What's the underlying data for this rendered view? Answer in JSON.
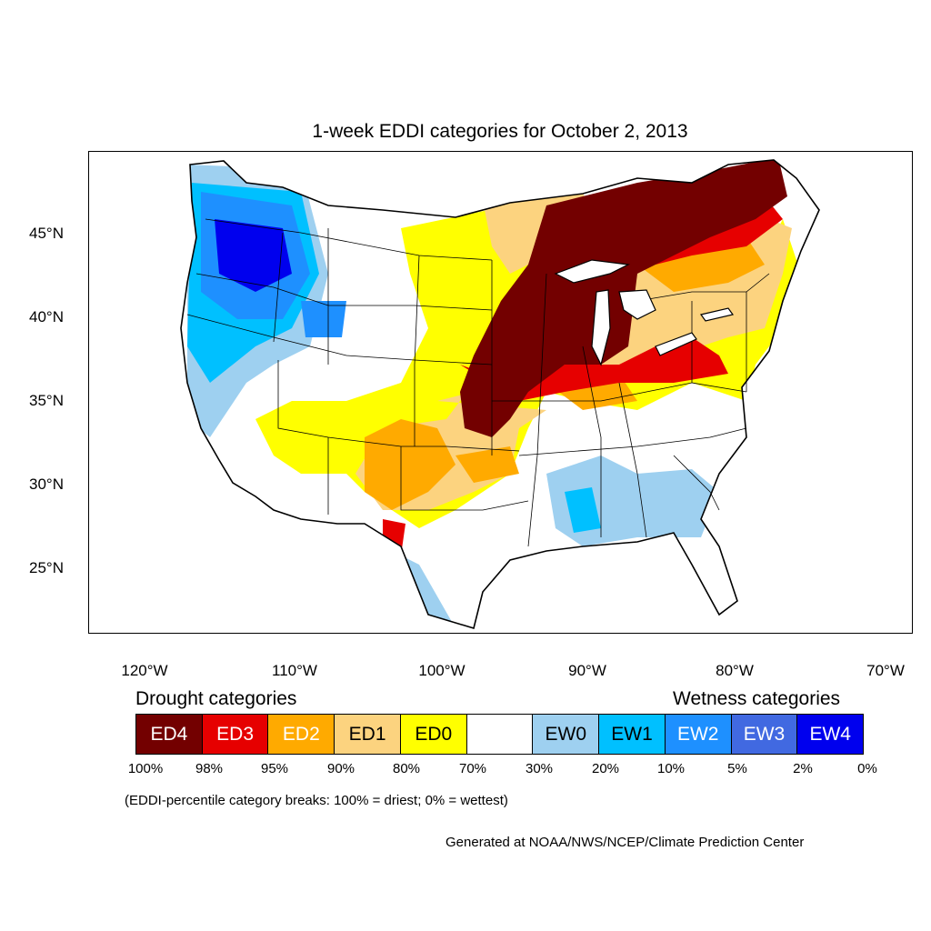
{
  "title": "1-week EDDI categories for October 2, 2013",
  "y_ticks": [
    "45°N",
    "40°N",
    "35°N",
    "30°N",
    "25°N"
  ],
  "x_ticks": [
    "120°W",
    "110°W",
    "100°W",
    "90°W",
    "80°W",
    "70°W"
  ],
  "legend": {
    "drought_heading": "Drought categories",
    "wetness_heading": "Wetness categories",
    "categories": [
      {
        "label": "ED4",
        "color": "#730000",
        "text_color": "#ffffff"
      },
      {
        "label": "ED3",
        "color": "#e60000",
        "text_color": "#ffffff"
      },
      {
        "label": "ED2",
        "color": "#ffaa00",
        "text_color": "#ffffff"
      },
      {
        "label": "ED1",
        "color": "#fcd37f",
        "text_color": "#000000"
      },
      {
        "label": "ED0",
        "color": "#ffff00",
        "text_color": "#000000"
      },
      {
        "label": "",
        "color": "#ffffff",
        "text_color": "#000000"
      },
      {
        "label": "EW0",
        "color": "#9ed0f0",
        "text_color": "#000000"
      },
      {
        "label": "EW1",
        "color": "#00c0ff",
        "text_color": "#000000"
      },
      {
        "label": "EW2",
        "color": "#1e90ff",
        "text_color": "#ffffff"
      },
      {
        "label": "EW3",
        "color": "#4169e1",
        "text_color": "#ffffff"
      },
      {
        "label": "EW4",
        "color": "#0000ee",
        "text_color": "#ffffff"
      }
    ],
    "percentiles": [
      "100%",
      "98%",
      "95%",
      "90%",
      "80%",
      "70%",
      "30%",
      "20%",
      "10%",
      "5%",
      "2%",
      "0%"
    ]
  },
  "note": "(EDDI-percentile category breaks: 100% = driest; 0% = wettest)",
  "credit": "Generated at NOAA/NWS/NCEP/Climate Prediction Center"
}
